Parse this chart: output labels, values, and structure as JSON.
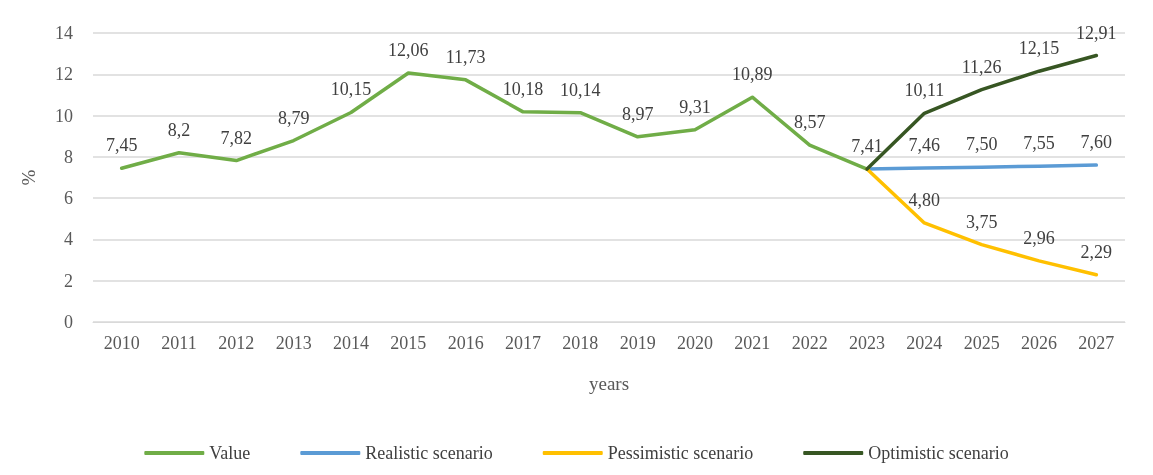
{
  "chart_data": {
    "type": "line",
    "xlabel": "years",
    "ylabel": "%",
    "categories": [
      "2010",
      "2011",
      "2012",
      "2013",
      "2014",
      "2015",
      "2016",
      "2017",
      "2018",
      "2019",
      "2020",
      "2021",
      "2022",
      "2023",
      "2024",
      "2025",
      "2026",
      "2027"
    ],
    "ylim": [
      0,
      14
    ],
    "yticks": [
      0,
      2,
      4,
      6,
      8,
      10,
      12,
      14
    ],
    "grid": "y",
    "legend": "bottom",
    "marker": "none",
    "line_style": "solid",
    "series": [
      {
        "name": "Value",
        "color": "#70ad47",
        "values": [
          7.45,
          8.2,
          7.82,
          8.79,
          10.15,
          12.06,
          11.73,
          10.18,
          10.14,
          8.97,
          9.31,
          10.89,
          8.57,
          7.41,
          null,
          null,
          null,
          null
        ],
        "value_labels": [
          "7,45",
          "8,2",
          "7,82",
          "8,79",
          "10,15",
          "12,06",
          "11,73",
          "10,18",
          "10,14",
          "8,97",
          "9,31",
          "10,89",
          "8,57",
          "7,41",
          null,
          null,
          null,
          null
        ]
      },
      {
        "name": "Realistic scenario",
        "color": "#5b9bd5",
        "values": [
          null,
          null,
          null,
          null,
          null,
          null,
          null,
          null,
          null,
          null,
          null,
          null,
          null,
          7.41,
          7.46,
          7.5,
          7.55,
          7.6
        ],
        "value_labels": [
          null,
          null,
          null,
          null,
          null,
          null,
          null,
          null,
          null,
          null,
          null,
          null,
          null,
          null,
          "7,46",
          "7,50",
          "7,55",
          "7,60"
        ]
      },
      {
        "name": "Pessimistic scenario",
        "color": "#ffc000",
        "values": [
          null,
          null,
          null,
          null,
          null,
          null,
          null,
          null,
          null,
          null,
          null,
          null,
          null,
          7.41,
          4.8,
          3.75,
          2.96,
          2.29
        ],
        "value_labels": [
          null,
          null,
          null,
          null,
          null,
          null,
          null,
          null,
          null,
          null,
          null,
          null,
          null,
          null,
          "4,80",
          "3,75",
          "2,96",
          "2,29"
        ]
      },
      {
        "name": "Optimistic scenario",
        "color": "#375623",
        "values": [
          null,
          null,
          null,
          null,
          null,
          null,
          null,
          null,
          null,
          null,
          null,
          null,
          null,
          7.41,
          10.11,
          11.26,
          12.15,
          12.91
        ],
        "value_labels": [
          null,
          null,
          null,
          null,
          null,
          null,
          null,
          null,
          null,
          null,
          null,
          null,
          null,
          null,
          "10,11",
          "11,26",
          "12,15",
          "12,91"
        ]
      }
    ]
  }
}
